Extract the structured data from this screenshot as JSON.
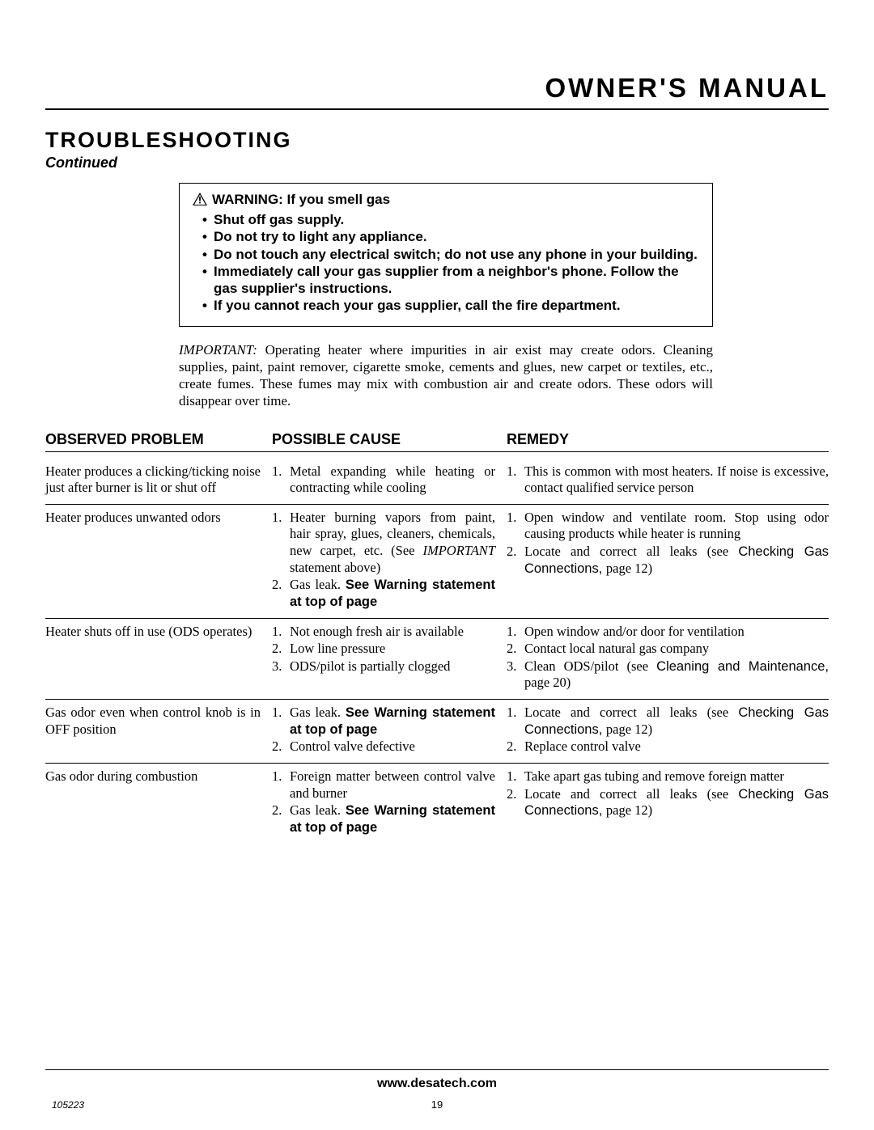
{
  "header": {
    "title": "OWNER'S MANUAL"
  },
  "section": {
    "title": "TROUBLESHOOTING",
    "continued": "Continued"
  },
  "warning": {
    "heading": "WARNING:  If you smell gas",
    "items": [
      "Shut off gas supply.",
      "Do not try to light any appliance.",
      "Do not touch any electrical switch; do not use any phone in your building.",
      "Immediately call your gas supplier from a neighbor's phone. Follow the gas supplier's instructions.",
      "If you cannot reach your gas supplier, call the fire department."
    ]
  },
  "important": {
    "label": "IMPORTANT:",
    "text": " Operating heater where impurities in air exist may create odors. Cleaning supplies, paint, paint remover, cigarette smoke, cements and glues, new carpet or textiles, etc., create fumes. These fumes may mix with combustion air and create odors. These odors will disappear over time."
  },
  "columns": {
    "problem": "OBSERVED PROBLEM",
    "cause": "POSSIBLE CAUSE",
    "remedy": "REMEDY"
  },
  "rows": [
    {
      "problem": "Heater produces a clicking/ticking noise just after burner is lit or shut off",
      "causes": [
        {
          "pre": "Metal expanding while heating or contracting while cooling"
        }
      ],
      "remedies": [
        {
          "pre": "This is common with most heaters. If noise is excessive, contact qualified service person"
        }
      ]
    },
    {
      "problem": "Heater produces unwanted odors",
      "causes": [
        {
          "pre": "Heater burning vapors from paint, hair spray, glues, cleaners, chemicals, new carpet, etc. (See ",
          "ital": "IMPORTANT",
          "post": " statement above)"
        },
        {
          "pre": "Gas leak. ",
          "bold": "See Warning statement at top of page"
        }
      ],
      "remedies": [
        {
          "pre": "Open window and ventilate room. Stop using odor causing products while heater is running"
        },
        {
          "pre": "Locate and correct all leaks (see ",
          "sans": "Checking Gas Connections, ",
          "post": "page 12)"
        }
      ]
    },
    {
      "problem": "Heater shuts off in use (ODS operates)",
      "causes": [
        {
          "pre": "Not enough fresh air is available"
        },
        {
          "pre": "Low line pressure"
        },
        {
          "pre": "ODS/pilot is partially clogged"
        }
      ],
      "remedies": [
        {
          "pre": "Open window and/or door for ventilation"
        },
        {
          "pre": "Contact local natural gas company"
        },
        {
          "pre": "Clean ODS/pilot (see ",
          "sans": "Cleaning and Maintenance, ",
          "post": "page 20)"
        }
      ]
    },
    {
      "problem": "Gas odor even when control knob is in OFF position",
      "causes": [
        {
          "pre": "Gas leak. ",
          "bold": "See Warning statement at top of page"
        },
        {
          "pre": "Control valve defective"
        }
      ],
      "remedies": [
        {
          "pre": "Locate and correct all leaks (see ",
          "sans": "Checking Gas Connections, ",
          "post": "page 12)"
        },
        {
          "pre": "Replace control valve"
        }
      ]
    },
    {
      "problem": "Gas odor during combustion",
      "causes": [
        {
          "pre": "Foreign matter between control valve and burner"
        },
        {
          "pre": "Gas leak. ",
          "bold": "See Warning statement at top of page"
        }
      ],
      "remedies": [
        {
          "pre": "Take apart gas tubing and remove foreign matter"
        },
        {
          "pre": "Locate and correct all leaks (see ",
          "sans": "Checking Gas Connections, ",
          "post": "page 12)"
        }
      ]
    }
  ],
  "footer": {
    "url": "www.desatech.com",
    "page": "19",
    "docid": "105223"
  }
}
